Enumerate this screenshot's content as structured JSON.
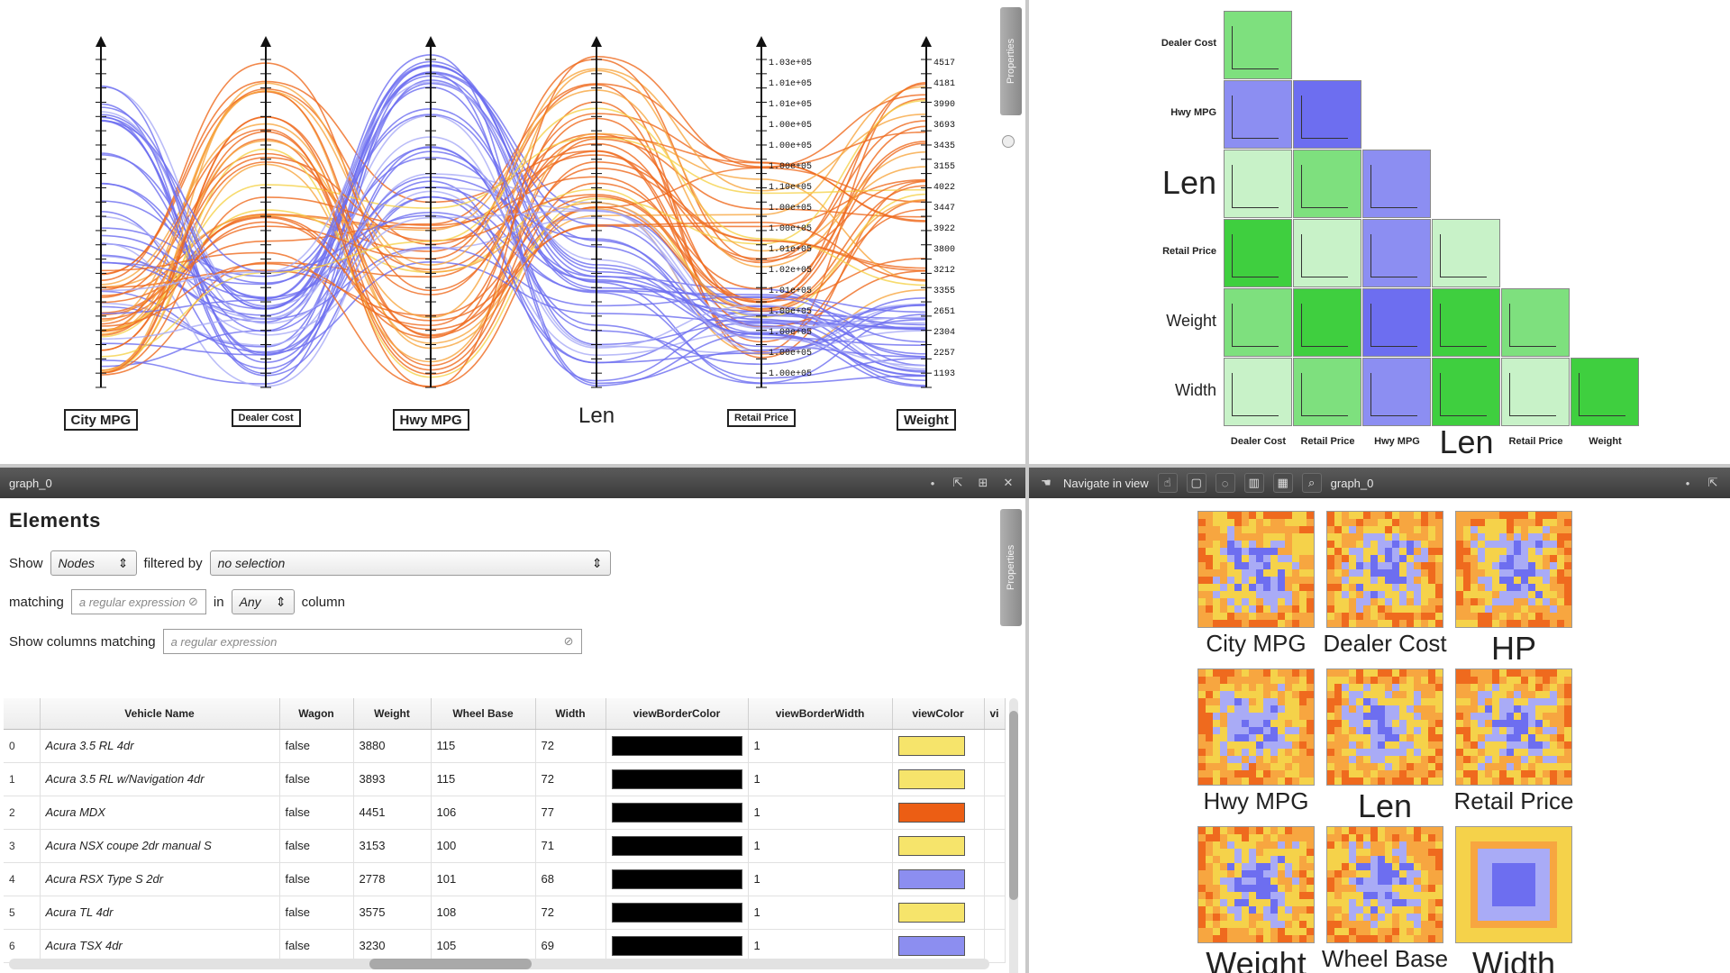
{
  "colors": {
    "orange": "#ef6a1e",
    "orange_light": "#f7a640",
    "yellow": "#f5d24a",
    "blue": "#6d6ef0",
    "blue_light": "#a9abf6",
    "green": "#3fcf3f",
    "green_light": "#c8f2c8",
    "green_mid": "#7ee07e",
    "blue_mid": "#8c8ef2",
    "black": "#000000",
    "swatch_yellow": "#f6e46b",
    "swatch_orange": "#ec5e14",
    "swatch_blue": "#8c8ef0"
  },
  "parallel_coords": {
    "axes": [
      {
        "label": "City MPG",
        "style": "box"
      },
      {
        "label": "Dealer Cost",
        "style": "box-small"
      },
      {
        "label": "Hwy MPG",
        "style": "box"
      },
      {
        "label": "Len",
        "style": "big"
      },
      {
        "label": "Retail Price",
        "style": "box-small"
      },
      {
        "label": "Weight",
        "style": "box"
      }
    ],
    "weight_ticks": [
      "4517",
      "4181",
      "3990",
      "3693",
      "3435",
      "3155",
      "4022",
      "3447",
      "3922",
      "3800",
      "3212",
      "3355",
      "2651",
      "2304",
      "2257",
      "1193"
    ],
    "retail_ticks": [
      "1.03e+05",
      "1.01e+05",
      "1.01e+05",
      "1.00e+05",
      "1.00e+05",
      "1.00e+05",
      "1.10e+05",
      "1.00e+05",
      "1.00e+05",
      "1.01e+05",
      "1.02e+05",
      "1.01e+05",
      "1.00e+05",
      "1.00e+05",
      "1.00e+05",
      "1.00e+05"
    ],
    "properties_label": "Properties"
  },
  "matrix": {
    "rows": [
      {
        "label": "Dealer Cost",
        "size": "small"
      },
      {
        "label": "Hwy MPG",
        "size": "small"
      },
      {
        "label": "Len",
        "size": "big"
      },
      {
        "label": "Retail Price",
        "size": "small"
      },
      {
        "label": "Weight",
        "size": "mid"
      },
      {
        "label": "Width",
        "size": "mid"
      }
    ],
    "cols": [
      {
        "label": "Dealer Cost",
        "size": "small"
      },
      {
        "label": "Retail Price",
        "size": "small"
      },
      {
        "label": "Hwy MPG",
        "size": "small"
      },
      {
        "label": "Len",
        "size": "big"
      },
      {
        "label": "Retail Price",
        "size": "small"
      },
      {
        "label": "Weight",
        "size": "small"
      }
    ],
    "cells": [
      [
        "green_mid"
      ],
      [
        "blue_mid",
        "blue"
      ],
      [
        "green_light",
        "green_mid",
        "blue_mid"
      ],
      [
        "green",
        "green_light",
        "blue_mid",
        "green_light"
      ],
      [
        "green_mid",
        "green",
        "blue",
        "green",
        "green_mid"
      ],
      [
        "green_light",
        "green_mid",
        "blue_mid",
        "green",
        "green_light",
        "green"
      ]
    ]
  },
  "table_pane": {
    "title": "graph_0",
    "heading": "Elements",
    "show_label": "Show",
    "show_value": "Nodes",
    "filtered_label": "filtered by",
    "filtered_value": "no selection",
    "matching_label": "matching",
    "matching_placeholder": "a regular expression",
    "in_label": "in",
    "in_value": "Any",
    "column_label": "column",
    "only_columns_label": "Show columns matching",
    "only_columns_placeholder": "a regular expression",
    "properties_label": "Properties",
    "columns": [
      "Vehicle Name",
      "Wagon",
      "Weight",
      "Wheel Base",
      "Width",
      "viewBorderColor",
      "viewBorderWidth",
      "viewColor",
      "vi"
    ],
    "rows": [
      {
        "idx": "0",
        "name": "Acura 3.5 RL 4dr",
        "wagon": "false",
        "weight": "3880",
        "wheelbase": "115",
        "width": "72",
        "border_width": "1",
        "color": "swatch_yellow"
      },
      {
        "idx": "1",
        "name": "Acura 3.5 RL w/Navigation 4dr",
        "wagon": "false",
        "weight": "3893",
        "wheelbase": "115",
        "width": "72",
        "border_width": "1",
        "color": "swatch_yellow"
      },
      {
        "idx": "2",
        "name": "Acura MDX",
        "wagon": "false",
        "weight": "4451",
        "wheelbase": "106",
        "width": "77",
        "border_width": "1",
        "color": "swatch_orange"
      },
      {
        "idx": "3",
        "name": "Acura NSX coupe 2dr manual S",
        "wagon": "false",
        "weight": "3153",
        "wheelbase": "100",
        "width": "71",
        "border_width": "1",
        "color": "swatch_yellow"
      },
      {
        "idx": "4",
        "name": "Acura RSX Type S 2dr",
        "wagon": "false",
        "weight": "2778",
        "wheelbase": "101",
        "width": "68",
        "border_width": "1",
        "color": "swatch_blue"
      },
      {
        "idx": "5",
        "name": "Acura TL 4dr",
        "wagon": "false",
        "weight": "3575",
        "wheelbase": "108",
        "width": "72",
        "border_width": "1",
        "color": "swatch_yellow"
      },
      {
        "idx": "6",
        "name": "Acura TSX 4dr",
        "wagon": "false",
        "weight": "3230",
        "wheelbase": "105",
        "width": "69",
        "border_width": "1",
        "color": "swatch_blue"
      }
    ]
  },
  "pixel_pane": {
    "title": "graph_0",
    "nav_label": "Navigate in view",
    "tiles": [
      {
        "label": "City MPG",
        "size": "mid"
      },
      {
        "label": "Dealer Cost",
        "size": "mid"
      },
      {
        "label": "HP",
        "size": "big"
      },
      {
        "label": "Hwy MPG",
        "size": "mid"
      },
      {
        "label": "Len",
        "size": "big"
      },
      {
        "label": "Retail Price",
        "size": "mid"
      },
      {
        "label": "Weight",
        "size": "big"
      },
      {
        "label": "Wheel Base",
        "size": "mid"
      },
      {
        "label": "Width",
        "size": "big"
      }
    ]
  }
}
